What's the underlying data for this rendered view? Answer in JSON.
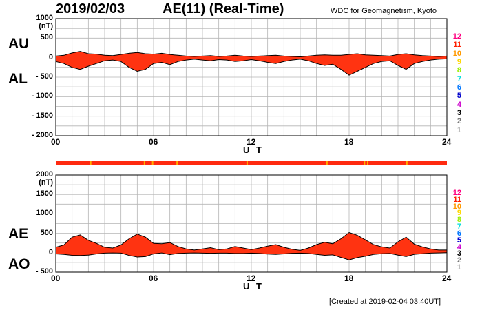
{
  "header": {
    "date": "2019/02/03",
    "title": "AE(11) (Real-Time)",
    "credit": "WDC for Geomagnetism, Kyoto"
  },
  "footer": {
    "created": "[Created at 2019-02-04 03:40UT]"
  },
  "legend": [
    {
      "label": "12",
      "color": "#ff0080"
    },
    {
      "label": "11",
      "color": "#ff2000"
    },
    {
      "label": "10",
      "color": "#ff9900"
    },
    {
      "label": "9",
      "color": "#ffd700"
    },
    {
      "label": "8",
      "color": "#99ee00"
    },
    {
      "label": "7",
      "color": "#00dddd"
    },
    {
      "label": "6",
      "color": "#0077ff"
    },
    {
      "label": "5",
      "color": "#0000cc"
    },
    {
      "label": "4",
      "color": "#cc00cc"
    },
    {
      "label": "3",
      "color": "#000000"
    },
    {
      "label": "2",
      "color": "#777777"
    },
    {
      "label": "1",
      "color": "#bbbbbb"
    }
  ],
  "chart_data": [
    {
      "type": "area",
      "name": "AU/AL",
      "top_label": "AU",
      "bottom_label": "AL",
      "unit": "(nT)",
      "ylim": [
        -2000,
        1000
      ],
      "yticks": [
        1000,
        500,
        0,
        -500,
        -1000,
        -1500,
        -2000
      ],
      "yticklabels": [
        "1000",
        "500",
        "0",
        "- 500",
        "- 1000",
        "- 1500",
        "- 2000"
      ],
      "xlim": [
        0,
        24
      ],
      "xticks": [
        0,
        6,
        12,
        18,
        24
      ],
      "xticklabels": [
        "00",
        "06",
        "12",
        "18",
        "24"
      ],
      "xlabel": "U T",
      "fill_color": "#ff3311",
      "series": [
        {
          "name": "AU",
          "x": [
            0,
            0.5,
            1,
            1.5,
            2,
            2.5,
            3,
            3.5,
            4,
            4.5,
            5,
            5.5,
            6,
            6.5,
            7,
            7.5,
            8,
            8.5,
            9,
            9.5,
            10,
            10.5,
            11,
            11.5,
            12,
            12.5,
            13,
            13.5,
            14,
            14.5,
            15,
            15.5,
            16,
            16.5,
            17,
            17.5,
            18,
            18.5,
            19,
            19.5,
            20,
            20.5,
            21,
            21.5,
            22,
            22.5,
            23,
            23.5,
            24
          ],
          "values": [
            40,
            60,
            120,
            160,
            100,
            90,
            60,
            50,
            80,
            110,
            130,
            100,
            90,
            110,
            80,
            60,
            40,
            30,
            40,
            50,
            30,
            40,
            60,
            40,
            30,
            40,
            50,
            60,
            40,
            30,
            20,
            40,
            60,
            70,
            60,
            60,
            80,
            100,
            70,
            60,
            50,
            40,
            80,
            100,
            70,
            50,
            40,
            30,
            40
          ]
        },
        {
          "name": "AL",
          "x": [
            0,
            0.5,
            1,
            1.5,
            2,
            2.5,
            3,
            3.5,
            4,
            4.5,
            5,
            5.5,
            6,
            6.5,
            7,
            7.5,
            8,
            8.5,
            9,
            9.5,
            10,
            10.5,
            11,
            11.5,
            12,
            12.5,
            13,
            13.5,
            14,
            14.5,
            15,
            15.5,
            16,
            16.5,
            17,
            17.5,
            18,
            18.5,
            19,
            19.5,
            20,
            20.5,
            21,
            21.5,
            22,
            22.5,
            23,
            23.5,
            24
          ],
          "values": [
            -100,
            -150,
            -250,
            -300,
            -220,
            -150,
            -80,
            -60,
            -100,
            -250,
            -350,
            -300,
            -150,
            -120,
            -180,
            -100,
            -60,
            -40,
            -60,
            -80,
            -50,
            -60,
            -100,
            -80,
            -50,
            -80,
            -120,
            -150,
            -100,
            -60,
            -40,
            -80,
            -150,
            -200,
            -170,
            -300,
            -450,
            -350,
            -250,
            -150,
            -100,
            -80,
            -200,
            -300,
            -150,
            -100,
            -60,
            -40,
            -30
          ]
        }
      ]
    },
    {
      "type": "area",
      "name": "AE/AO",
      "top_label": "AE",
      "bottom_label": "AO",
      "unit": "(nT)",
      "ylim": [
        -500,
        2000
      ],
      "yticks": [
        2000,
        1500,
        1000,
        500,
        0,
        -500
      ],
      "yticklabels": [
        "2000",
        "1500",
        "1000",
        "500",
        "0",
        "- 500"
      ],
      "xlim": [
        0,
        24
      ],
      "xticks": [
        0,
        6,
        12,
        18,
        24
      ],
      "xticklabels": [
        "00",
        "06",
        "12",
        "18",
        "24"
      ],
      "xlabel": "U T",
      "fill_color": "#ff3311",
      "series": [
        {
          "name": "AE",
          "x": [
            0,
            0.5,
            1,
            1.5,
            2,
            2.5,
            3,
            3.5,
            4,
            4.5,
            5,
            5.5,
            6,
            6.5,
            7,
            7.5,
            8,
            8.5,
            9,
            9.5,
            10,
            10.5,
            11,
            11.5,
            12,
            12.5,
            13,
            13.5,
            14,
            14.5,
            15,
            15.5,
            16,
            16.5,
            17,
            17.5,
            18,
            18.5,
            19,
            19.5,
            20,
            20.5,
            21,
            21.5,
            22,
            22.5,
            23,
            23.5,
            24
          ],
          "values": [
            140,
            200,
            400,
            460,
            320,
            240,
            140,
            120,
            200,
            360,
            480,
            400,
            240,
            230,
            260,
            160,
            100,
            70,
            100,
            130,
            80,
            100,
            160,
            120,
            80,
            120,
            170,
            210,
            140,
            90,
            60,
            120,
            210,
            270,
            230,
            360,
            520,
            450,
            330,
            210,
            150,
            120,
            280,
            400,
            220,
            150,
            100,
            70,
            70
          ]
        },
        {
          "name": "AO",
          "x": [
            0,
            0.5,
            1,
            1.5,
            2,
            2.5,
            3,
            3.5,
            4,
            4.5,
            5,
            5.5,
            6,
            6.5,
            7,
            7.5,
            8,
            8.5,
            9,
            9.5,
            10,
            10.5,
            11,
            11.5,
            12,
            12.5,
            13,
            13.5,
            14,
            14.5,
            15,
            15.5,
            16,
            16.5,
            17,
            17.5,
            18,
            18.5,
            19,
            19.5,
            20,
            20.5,
            21,
            21.5,
            22,
            22.5,
            23,
            23.5,
            24
          ],
          "values": [
            -30,
            -45,
            -65,
            -70,
            -60,
            -30,
            -10,
            -5,
            -10,
            -70,
            -110,
            -100,
            -30,
            -5,
            -50,
            -20,
            -10,
            -5,
            -10,
            -15,
            -10,
            -10,
            -20,
            -20,
            -10,
            -20,
            -35,
            -45,
            -30,
            -15,
            -10,
            -20,
            -45,
            -65,
            -55,
            -120,
            -185,
            -125,
            -90,
            -45,
            -25,
            -20,
            -60,
            -100,
            -40,
            -25,
            -10,
            -5,
            0
          ]
        }
      ]
    }
  ]
}
